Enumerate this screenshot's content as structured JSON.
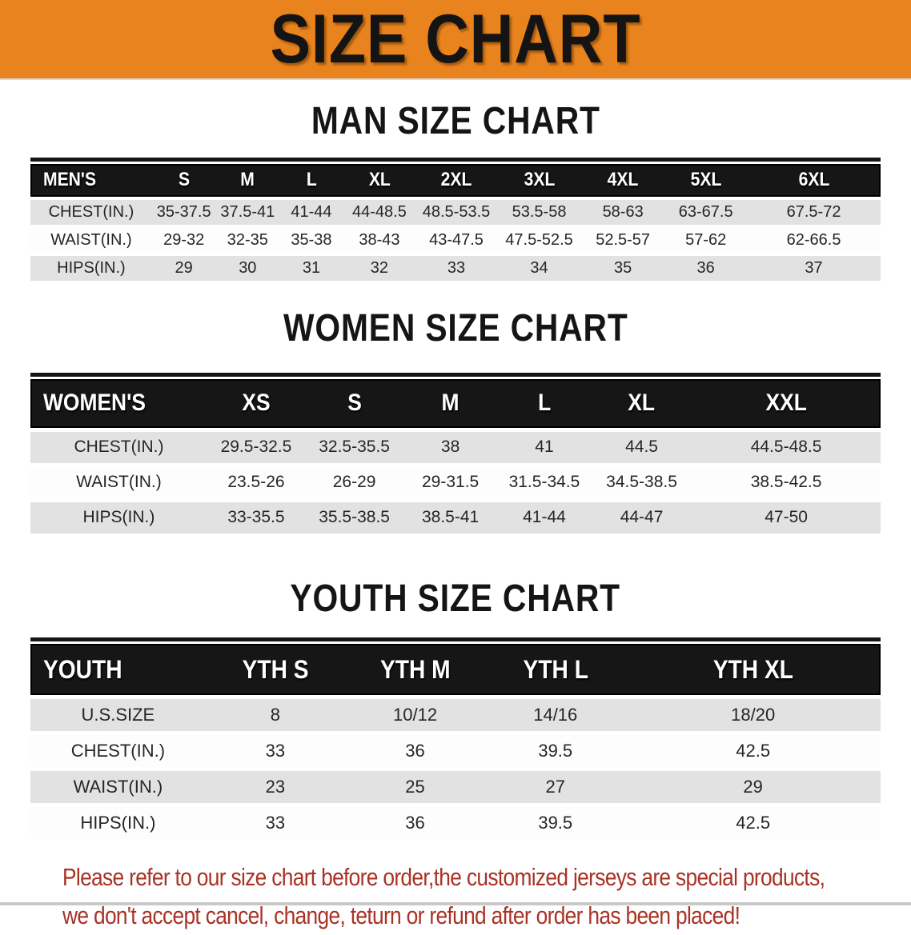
{
  "banner": {
    "title": "SIZE CHART",
    "bg_color": "#E8831D",
    "title_color": "#141414"
  },
  "sections": [
    {
      "heading": "MAN SIZE CHART",
      "table": {
        "header_label": "MEN'S",
        "columns": [
          "S",
          "M",
          "L",
          "XL",
          "2XL",
          "3XL",
          "4XL",
          "5XL",
          "6XL"
        ],
        "rows": [
          {
            "label": "CHEST(IN.)",
            "values": [
              "35-37.5",
              "37.5-41",
              "41-44",
              "44-48.5",
              "48.5-53.5",
              "53.5-58",
              "58-63",
              "63-67.5",
              "67.5-72"
            ]
          },
          {
            "label": "WAIST(IN.)",
            "values": [
              "29-32",
              "32-35",
              "35-38",
              "38-43",
              "43-47.5",
              "47.5-52.5",
              "52.5-57",
              "57-62",
              "62-66.5"
            ]
          },
          {
            "label": "HIPS(IN.)",
            "values": [
              "29",
              "30",
              "31",
              "32",
              "33",
              "34",
              "35",
              "36",
              "37"
            ]
          }
        ]
      }
    },
    {
      "heading": "WOMEN SIZE CHART",
      "table": {
        "header_label": "WOMEN'S",
        "columns": [
          "XS",
          "S",
          "M",
          "L",
          "XL",
          "XXL"
        ],
        "rows": [
          {
            "label": "CHEST(IN.)",
            "values": [
              "29.5-32.5",
              "32.5-35.5",
              "38",
              "41",
              "44.5",
              "44.5-48.5"
            ]
          },
          {
            "label": "WAIST(IN.)",
            "values": [
              "23.5-26",
              "26-29",
              "29-31.5",
              "31.5-34.5",
              "34.5-38.5",
              "38.5-42.5"
            ]
          },
          {
            "label": "HIPS(IN.)",
            "values": [
              "33-35.5",
              "35.5-38.5",
              "38.5-41",
              "41-44",
              "44-47",
              "47-50"
            ]
          }
        ]
      }
    },
    {
      "heading": "YOUTH SIZE CHART",
      "table": {
        "header_label": "YOUTH",
        "columns": [
          "YTH S",
          "YTH M",
          "YTH L",
          "YTH XL"
        ],
        "rows": [
          {
            "label": "U.S.SIZE",
            "values": [
              "8",
              "10/12",
              "14/16",
              "18/20"
            ]
          },
          {
            "label": "CHEST(IN.)",
            "values": [
              "33",
              "36",
              "39.5",
              "42.5"
            ]
          },
          {
            "label": "WAIST(IN.)",
            "values": [
              "23",
              "25",
              "27",
              "29"
            ]
          },
          {
            "label": "HIPS(IN.)",
            "values": [
              "33",
              "36",
              "39.5",
              "42.5"
            ]
          }
        ]
      }
    }
  ],
  "footer": {
    "line1": "Please refer to our size chart before order,the customized jerseys are special products,",
    "line2": "we don't accept cancel, change, teturn or refund after order has been placed!",
    "text_color": "#A93226"
  }
}
